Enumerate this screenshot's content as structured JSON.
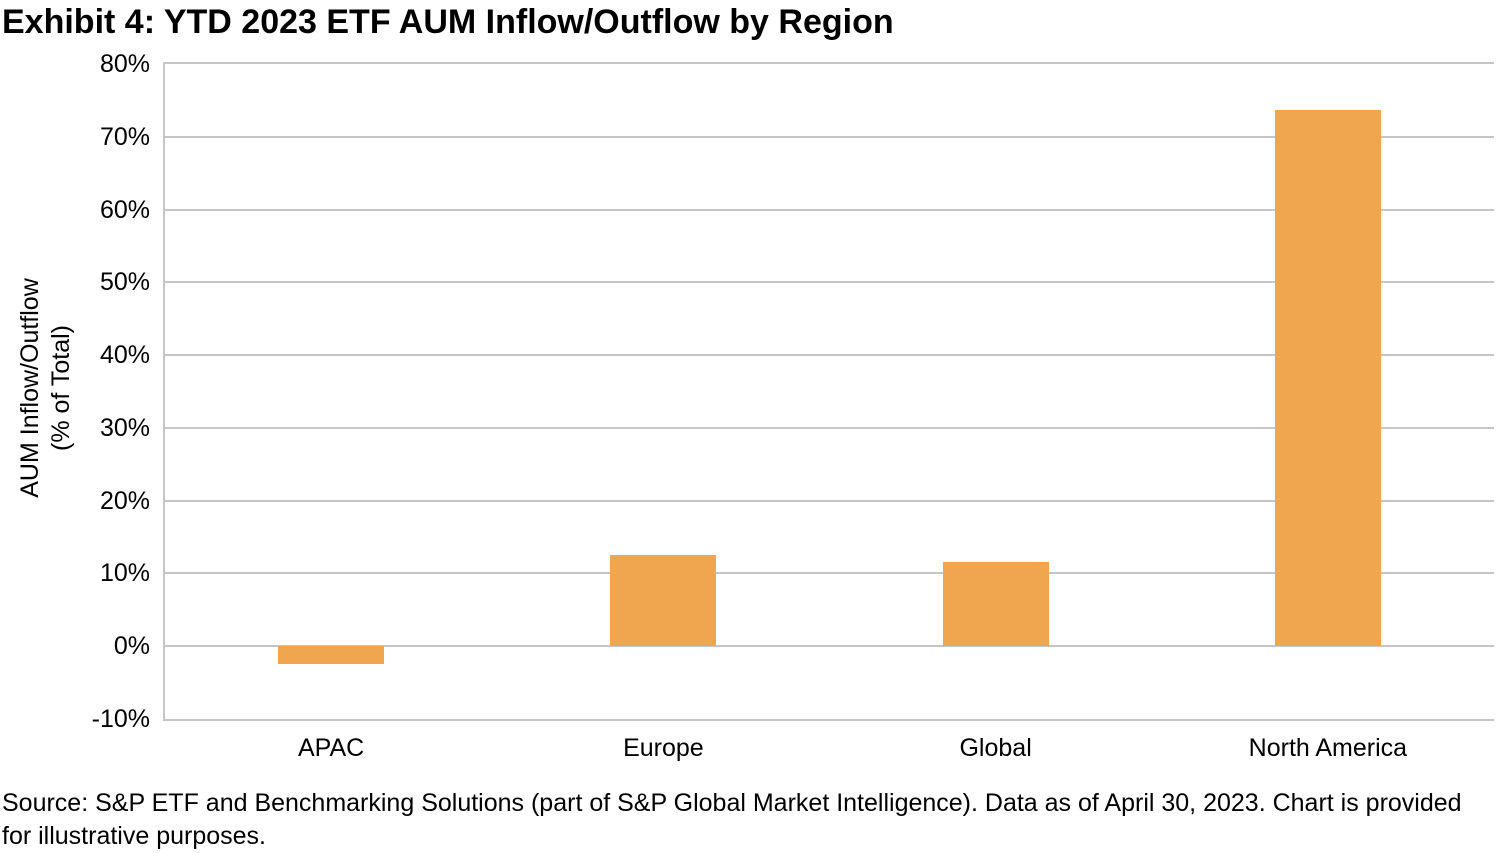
{
  "chart_data": {
    "type": "bar",
    "title": "Exhibit 4: YTD 2023 ETF AUM Inflow/Outflow by Region",
    "categories": [
      "APAC",
      "Europe",
      "Global",
      "North America"
    ],
    "values": [
      -2.5,
      12.6,
      11.6,
      73.7
    ],
    "xlabel": "",
    "ylabel": "AUM Inflow/Outflow (% of Total)",
    "ylabel_lines": [
      "AUM Inflow/Outflow",
      "(% of Total)"
    ],
    "ylim": [
      -10,
      80
    ],
    "yticks": [
      80,
      70,
      60,
      50,
      40,
      30,
      20,
      10,
      0,
      -10
    ],
    "ytick_labels": [
      "80%",
      "70%",
      "60%",
      "50%",
      "40%",
      "30%",
      "20%",
      "10%",
      "0%",
      "-10%"
    ],
    "grid": true,
    "legend": false,
    "bar_color": "#F0A64E",
    "gridline_color": "#C6C6C6",
    "axis_line_color": "#C6C6C6",
    "text_color": "#000000",
    "background_color": "#FFFFFF"
  },
  "source_note": "Source: S&P ETF and Benchmarking Solutions (part of S&P Global Market Intelligence). Data as of April 30, 2023. Chart is provided for illustrative purposes."
}
